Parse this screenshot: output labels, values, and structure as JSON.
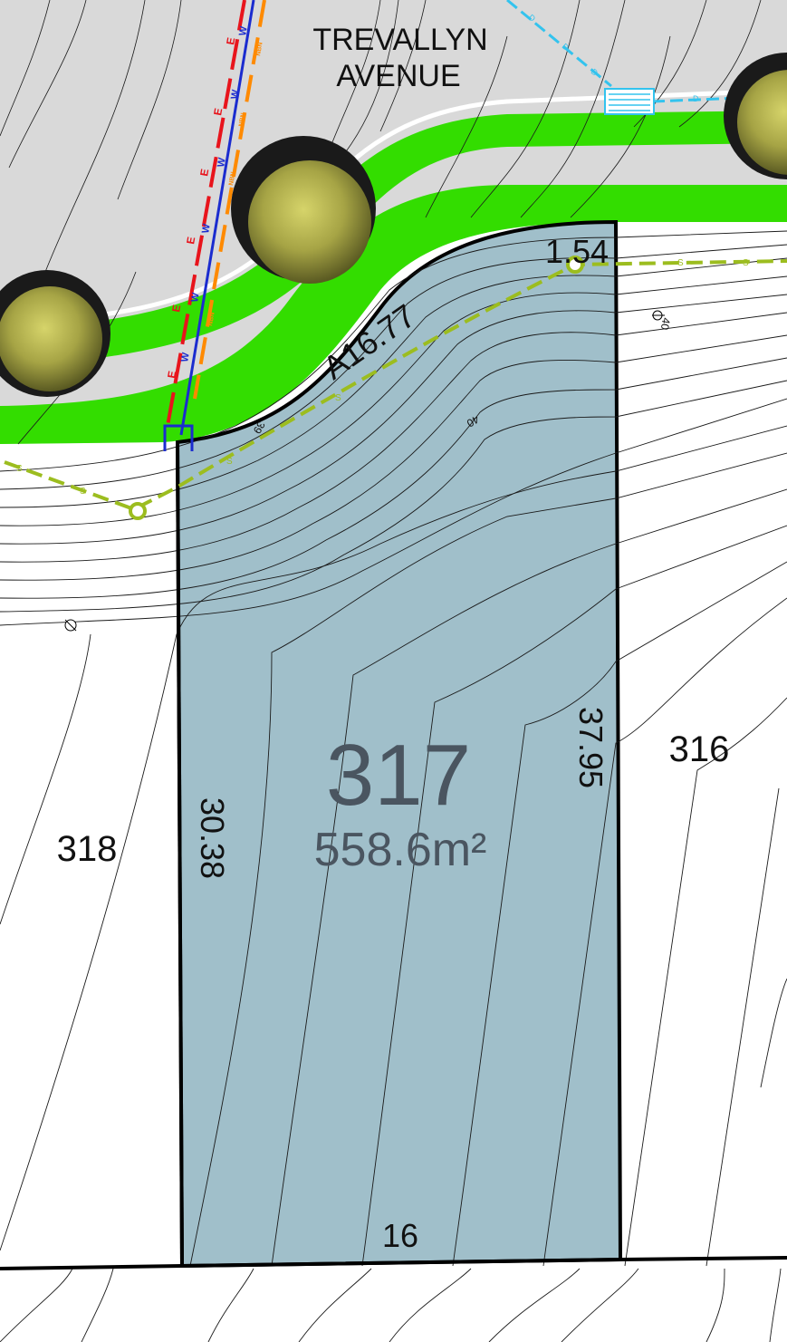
{
  "street": {
    "name_line1": "TREVALLYN",
    "name_line2": "AVENUE"
  },
  "lot": {
    "number": "317",
    "area": "558.6m²",
    "frontage_arc": "A16.77",
    "frontage_corner": "1.54",
    "left_side": "30.38",
    "right_side": "37.95",
    "rear": "16"
  },
  "neighbours": {
    "left": "318",
    "right": "316"
  },
  "contours": {
    "label_a": "39",
    "label_b": "40",
    "label_c": "40"
  },
  "services": {
    "electric": "E",
    "nbn": "NBN",
    "water": "W",
    "sewer": "S",
    "drainage": "D"
  },
  "colors": {
    "road": "#d9d9d9",
    "verge": "#33dd00",
    "lot_fill": "#a0bfca",
    "lot_text": "#4a5560",
    "sewer_line": "#9cbd1f",
    "electric_line": "#e8141c",
    "water_line": "#1b2ccf",
    "nbn_line": "#ff8a00",
    "drainage_line": "#33c3ee",
    "tree_canopy": "#b9b850"
  }
}
